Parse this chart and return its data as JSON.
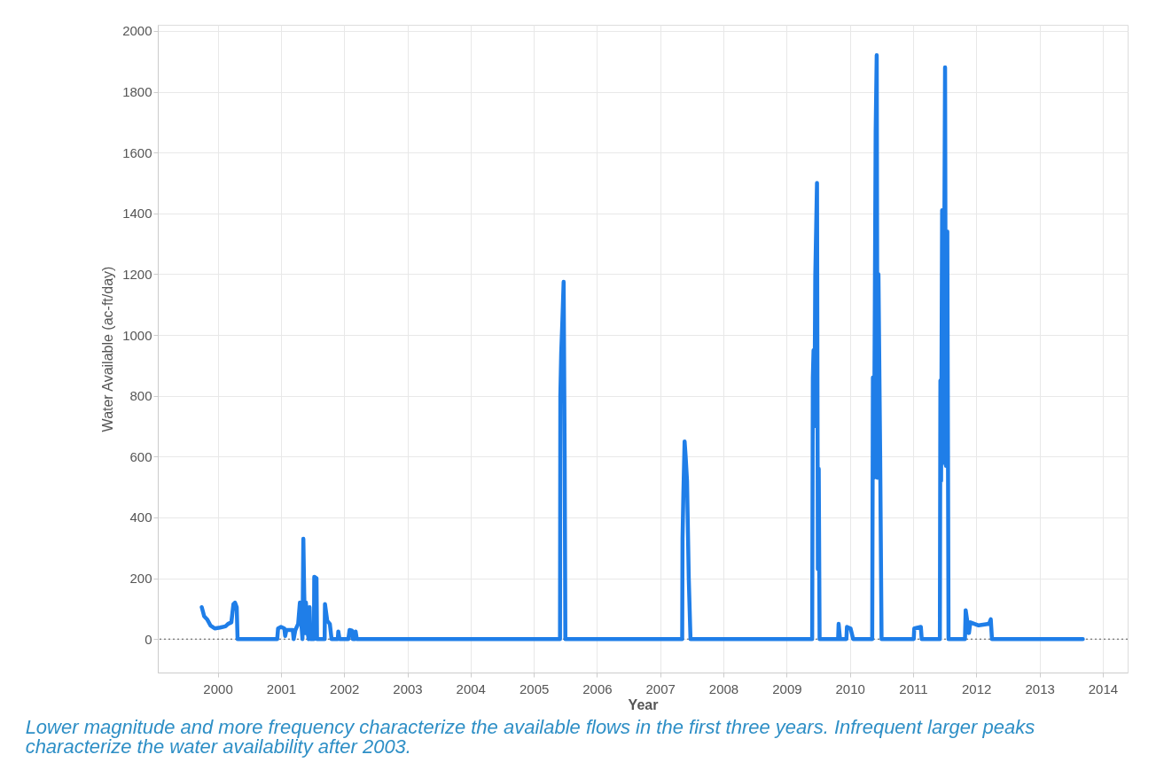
{
  "chart_data": {
    "type": "line",
    "xlabel": "Year",
    "ylabel": "Water Available (ac-ft/day)",
    "annotations": [
      "Lower magnitude and more frequency characterize the available flows in the first three years.  Infrequent larger peaks characterize the water availability after 2003."
    ],
    "xlim": [
      "1999-01-20",
      "2014-05-25"
    ],
    "xticks": [
      "2000",
      "2001",
      "2002",
      "2003",
      "2004",
      "2005",
      "2006",
      "2007",
      "2008",
      "2009",
      "2010",
      "2011",
      "2012",
      "2013",
      "2014"
    ],
    "ylim": [
      -110,
      2020
    ],
    "yticks": [
      0,
      200,
      400,
      600,
      800,
      1000,
      1200,
      1400,
      1600,
      1800,
      2000
    ],
    "grid": true,
    "marker": "none",
    "line_style": "solid",
    "ref_lines": [
      {
        "axis": "y",
        "value": 0,
        "label": null,
        "color": "#555555",
        "line_style": "dotted"
      }
    ],
    "series": [
      {
        "color": "#1f7ee8",
        "x": [
          "1999-10-01",
          "1999-10-15",
          "1999-11-01",
          "1999-11-20",
          "1999-12-15",
          "2000-01-15",
          "2000-02-15",
          "2000-03-01",
          "2000-03-20",
          "2000-04-01",
          "2000-04-10",
          "2000-04-20",
          "2000-04-25",
          "2000-12-10",
          "2000-12-15",
          "2001-01-01",
          "2001-01-20",
          "2001-01-25",
          "2001-02-01",
          "2001-03-10",
          "2001-03-15",
          "2001-03-25",
          "2001-04-10",
          "2001-04-20",
          "2001-05-05",
          "2001-05-10",
          "2001-05-15",
          "2001-05-20",
          "2001-05-25",
          "2001-06-01",
          "2001-06-10",
          "2001-06-15",
          "2001-06-20",
          "2001-07-10",
          "2001-07-12",
          "2001-07-25",
          "2001-07-28",
          "2001-09-10",
          "2001-09-12",
          "2001-09-25",
          "2001-10-10",
          "2001-10-20",
          "2001-11-25",
          "2001-11-28",
          "2001-12-05",
          "2002-01-25",
          "2002-02-01",
          "2002-02-15",
          "2002-02-20",
          "2002-03-05",
          "2002-03-08",
          "2002-03-15",
          "2005-06-01",
          "2005-06-03",
          "2005-06-08",
          "2005-06-15",
          "2005-06-22",
          "2005-06-28",
          "2005-07-02",
          "2007-05-08",
          "2007-05-10",
          "2007-05-15",
          "2007-05-22",
          "2007-05-28",
          "2007-06-05",
          "2007-06-15",
          "2007-06-25",
          "2009-05-28",
          "2009-06-01",
          "2009-06-05",
          "2009-06-10",
          "2009-06-15",
          "2009-06-25",
          "2009-06-30",
          "2009-07-05",
          "2009-07-10",
          "2009-10-25",
          "2009-10-28",
          "2009-11-05",
          "2009-12-12",
          "2009-12-15",
          "2010-01-05",
          "2010-01-20",
          "2010-05-10",
          "2010-05-14",
          "2010-05-20",
          "2010-05-25",
          "2010-05-30",
          "2010-06-05",
          "2010-06-10",
          "2010-06-15",
          "2010-06-25",
          "2010-07-03",
          "2011-01-05",
          "2011-01-08",
          "2011-02-15",
          "2011-02-20",
          "2011-06-05",
          "2011-06-08",
          "2011-06-12",
          "2011-06-18",
          "2011-06-25",
          "2011-07-05",
          "2011-07-10",
          "2011-07-18",
          "2011-07-25",
          "2011-10-28",
          "2011-11-01",
          "2011-11-10",
          "2011-11-20",
          "2011-11-28",
          "2012-01-15",
          "2012-03-15",
          "2012-03-25",
          "2012-04-01",
          "2013-09-08"
        ],
        "values": [
          105,
          75,
          65,
          45,
          35,
          38,
          42,
          50,
          55,
          115,
          120,
          105,
          0,
          0,
          35,
          40,
          35,
          10,
          30,
          30,
          0,
          30,
          50,
          120,
          0,
          330,
          150,
          20,
          120,
          30,
          0,
          105,
          0,
          0,
          205,
          200,
          0,
          0,
          115,
          60,
          50,
          0,
          0,
          25,
          0,
          0,
          30,
          28,
          0,
          0,
          25,
          0,
          0,
          800,
          940,
          1050,
          1175,
          600,
          0,
          0,
          330,
          480,
          650,
          600,
          520,
          200,
          0,
          0,
          860,
          950,
          700,
          1190,
          1500,
          230,
          560,
          0,
          0,
          50,
          0,
          0,
          40,
          35,
          0,
          0,
          860,
          530,
          1080,
          1670,
          1920,
          530,
          1200,
          600,
          0,
          0,
          35,
          40,
          0,
          0,
          850,
          520,
          1410,
          580,
          1880,
          570,
          1340,
          0,
          0,
          95,
          60,
          20,
          55,
          45,
          50,
          65,
          0,
          0
        ]
      }
    ]
  }
}
